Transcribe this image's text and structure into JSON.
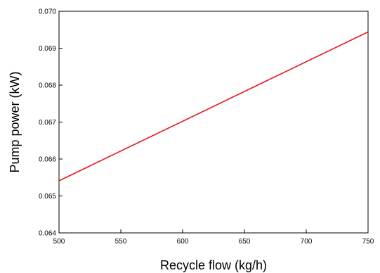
{
  "chart_data": {
    "type": "line",
    "title": "",
    "xlabel": "Recycle flow (kg/h)",
    "ylabel": "Pump power (kW)",
    "xlim": [
      500,
      750
    ],
    "ylim": [
      0.064,
      0.07
    ],
    "x_ticks": [
      500,
      550,
      600,
      650,
      700,
      750
    ],
    "x_tick_labels": [
      "500",
      "550",
      "600",
      "650",
      "700",
      "750"
    ],
    "y_ticks": [
      0.064,
      0.065,
      0.066,
      0.067,
      0.068,
      0.069,
      0.07
    ],
    "y_tick_labels": [
      "0.064",
      "0.065",
      "0.066",
      "0.067",
      "0.068",
      "0.069",
      "0.070"
    ],
    "grid": false,
    "series": [
      {
        "color": "#e8141b",
        "x": [
          500,
          750
        ],
        "y": [
          0.06541,
          0.06944
        ]
      }
    ]
  }
}
